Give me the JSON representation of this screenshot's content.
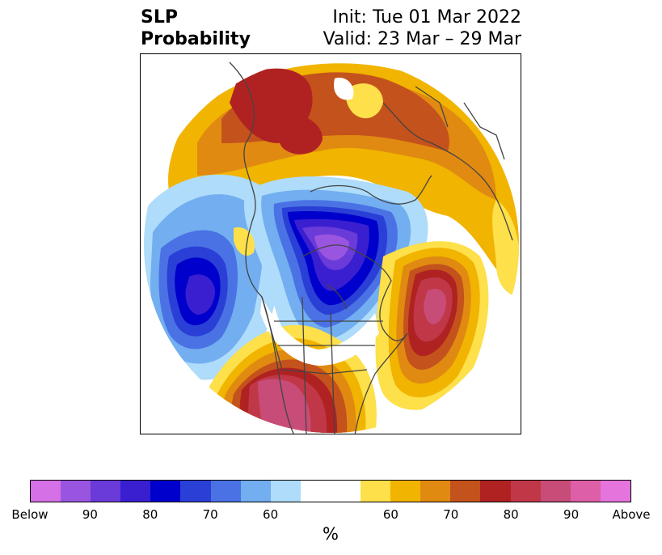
{
  "title": {
    "left_line1": "SLP",
    "left_line2": "Probability",
    "right_line1": "Init: Tue 01 Mar 2022",
    "right_line2": "Valid: 23 Mar – 29 Mar"
  },
  "map": {
    "projection": "north-polar-stereographic",
    "features": [
      "continent-outlines",
      "country-borders",
      "us-state-borders"
    ],
    "anomaly_regions": [
      {
        "name": "north-america-below",
        "category": "Below",
        "level": 90
      },
      {
        "name": "north-pacific-below",
        "category": "Below",
        "level": 80
      },
      {
        "name": "north-atlantic-above",
        "category": "Above",
        "level": 90
      },
      {
        "name": "western-us-above",
        "category": "Above",
        "level": 90
      },
      {
        "name": "eurasia-arctic-above",
        "category": "Above",
        "level": 80
      },
      {
        "name": "siberia-above",
        "category": "Above",
        "level": 70
      }
    ]
  },
  "colorbar": {
    "colors": [
      "#d670e6",
      "#9a55e0",
      "#6a3bd8",
      "#3a1fd0",
      "#0000cc",
      "#2a3fd6",
      "#4a72e4",
      "#72aef0",
      "#aedcfa",
      "#ffffff",
      "#ffffff",
      "#fde04a",
      "#f1b400",
      "#e08a12",
      "#c4521c",
      "#b02222",
      "#c03848",
      "#c84c78",
      "#dd5fa8",
      "#e574dc"
    ],
    "tick_labels": [
      "Below",
      "90",
      "80",
      "70",
      "60",
      "60",
      "70",
      "80",
      "90",
      "Above"
    ],
    "unit_label": "%"
  }
}
